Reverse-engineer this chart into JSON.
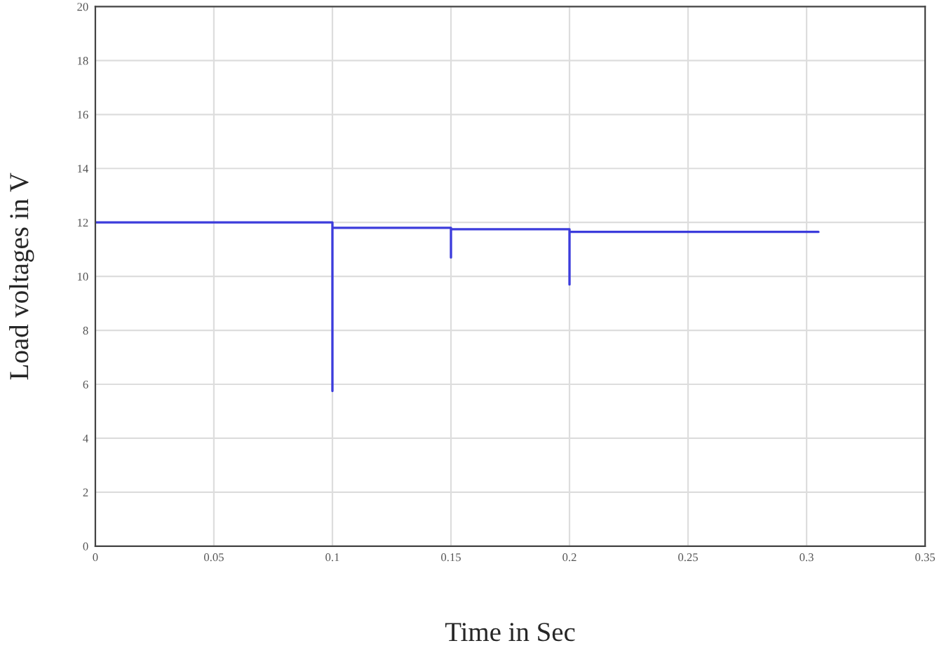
{
  "chart_data": {
    "type": "line",
    "xlabel": "Time in Sec",
    "ylabel": "Load voltages in V",
    "series": [
      {
        "color": "#3c3cdc",
        "x": [
          0,
          0.1,
          0.1,
          0.1,
          0.15,
          0.15,
          0.15,
          0.2,
          0.2,
          0.2,
          0.305
        ],
        "values": [
          12.0,
          12.0,
          5.75,
          11.8,
          11.8,
          10.7,
          11.75,
          11.75,
          9.7,
          11.65,
          11.65
        ]
      }
    ],
    "xlim": [
      0,
      0.35
    ],
    "xticks": [
      0,
      0.05,
      0.1,
      0.15,
      0.2,
      0.25,
      0.3,
      0.35
    ],
    "ylim": [
      0,
      20
    ],
    "yticks": [
      0,
      2,
      4,
      6,
      8,
      10,
      12,
      14,
      16,
      18,
      20
    ],
    "grid": true,
    "legend": false
  }
}
